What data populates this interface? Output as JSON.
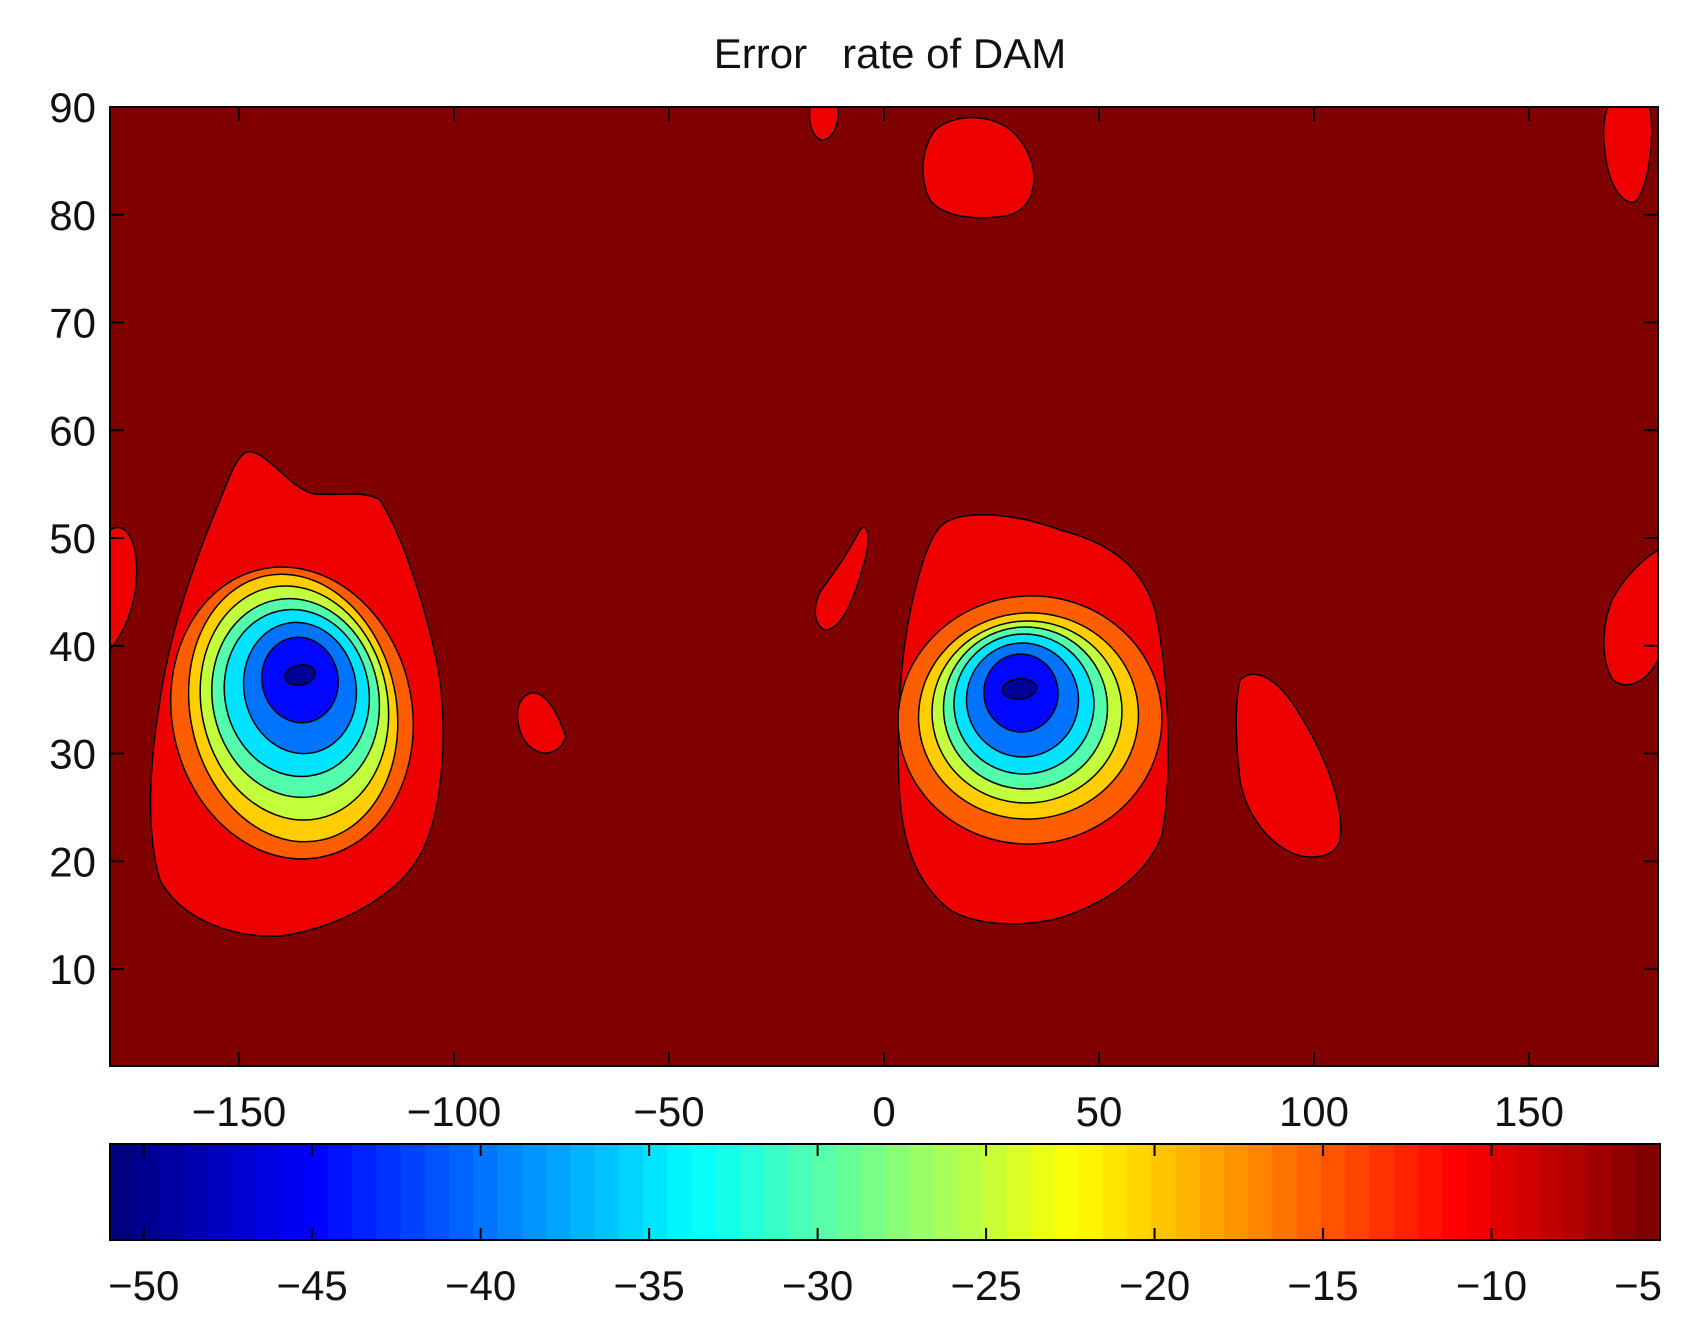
{
  "chart_data": {
    "type": "heatmap",
    "subtype": "filled-contour",
    "title": "Error   rate of DAM",
    "xlabel": "",
    "ylabel": "",
    "xlim": [
      -180,
      180
    ],
    "ylim": [
      1,
      90
    ],
    "x_ticks": [
      -150,
      -100,
      -50,
      0,
      50,
      100,
      150
    ],
    "y_ticks": [
      10,
      20,
      30,
      40,
      50,
      60,
      70,
      80,
      90
    ],
    "colormap": "jet",
    "contour_levels": [
      -50,
      -45,
      -40,
      -35,
      -30,
      -25,
      -20,
      -15,
      -10,
      -5
    ],
    "background_value": -5,
    "grid": false,
    "colorbar": {
      "orientation": "horizontal",
      "placement": "bottom",
      "range": [
        -51,
        -5
      ],
      "ticks": [
        -50,
        -45,
        -40,
        -35,
        -30,
        -25,
        -20,
        -15,
        -10,
        -5
      ]
    },
    "features": [
      {
        "name": "minimum-west",
        "center": [
          -135,
          36
        ],
        "min_value": -50,
        "outer_extent": {
          "x": [
            -170,
            -100
          ],
          "y": [
            13,
            58
          ]
        }
      },
      {
        "name": "minimum-east",
        "center": [
          34,
          36
        ],
        "min_value": -50,
        "outer_extent": {
          "x": [
            5,
            68
          ],
          "y": [
            14,
            52
          ]
        }
      },
      {
        "name": "patch-west-edge",
        "center": [
          -177,
          45
        ],
        "min_value": -10
      },
      {
        "name": "patch-small-left",
        "center": [
          -78,
          33
        ],
        "min_value": -10
      },
      {
        "name": "patch-slanted",
        "center": [
          -10,
          45
        ],
        "min_value": -10
      },
      {
        "name": "patch-top-mid",
        "center": [
          -12,
          89
        ],
        "min_value": -10
      },
      {
        "name": "patch-top-blob",
        "center": [
          22,
          85
        ],
        "min_value": -10
      },
      {
        "name": "patch-elongated",
        "center": [
          96,
          30
        ],
        "min_value": -10
      },
      {
        "name": "patch-top-right",
        "center": [
          174,
          86
        ],
        "min_value": -10
      },
      {
        "name": "patch-right-edge",
        "center": [
          177,
          42
        ],
        "min_value": -10
      }
    ]
  }
}
